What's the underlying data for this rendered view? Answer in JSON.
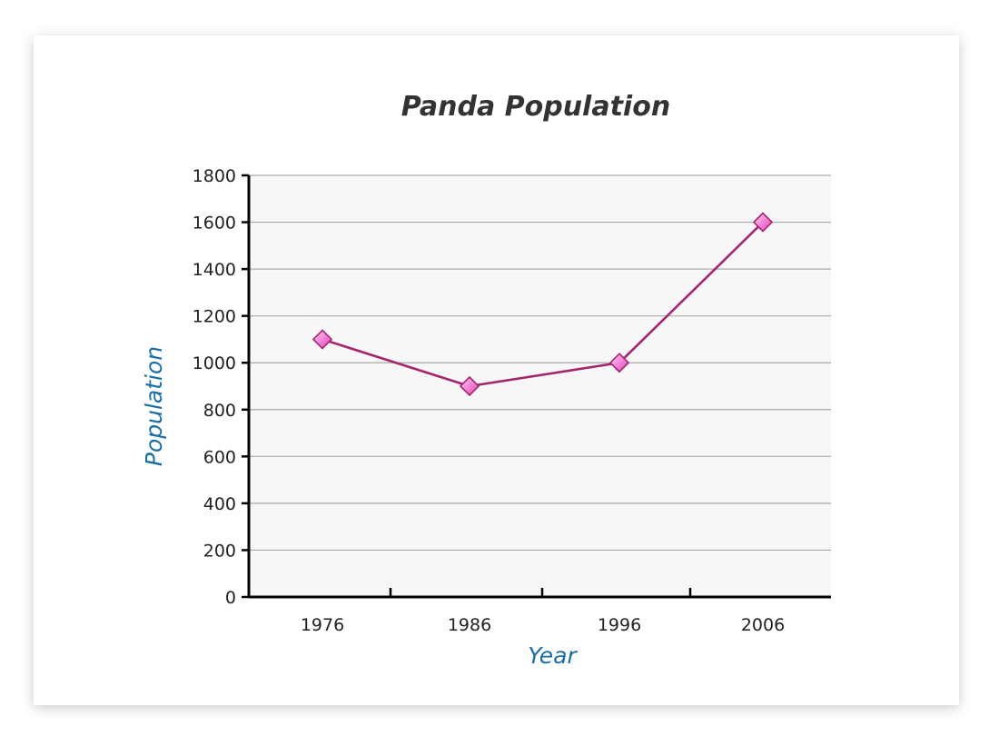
{
  "chart_data": {
    "type": "line",
    "title": "Panda Population",
    "xlabel": "Year",
    "ylabel": "Population",
    "x": [
      "1976",
      "1986",
      "1996",
      "2006"
    ],
    "series": [
      {
        "values": [
          1100,
          900,
          1000,
          1600
        ]
      }
    ],
    "ylim": [
      0,
      1800
    ],
    "yticks": [
      0,
      200,
      400,
      600,
      800,
      1000,
      1200,
      1400,
      1600,
      1800
    ],
    "grid": true,
    "legend": "none",
    "colors": {
      "line": "#a3256e",
      "marker_fill": "#f07dd6",
      "marker_stroke": "#a3256e",
      "plot_bg": "#f7f7f7",
      "gridline": "#aaaaaa",
      "axis_label": "#1a6ea1"
    }
  }
}
